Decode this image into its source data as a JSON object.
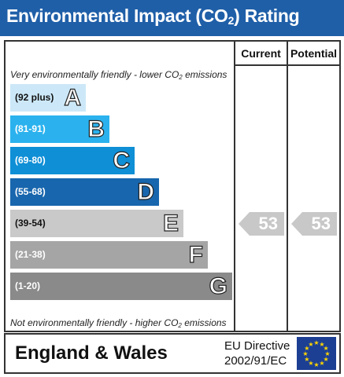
{
  "title": {
    "prefix": "Environmental Impact (CO",
    "sub": "2",
    "suffix": ") Rating"
  },
  "columns": {
    "current": "Current",
    "potential": "Potential"
  },
  "top_note": {
    "prefix": "Very environmentally friendly - lower CO",
    "sub": "2",
    "suffix": " emissions"
  },
  "bottom_note": {
    "prefix": "Not environmentally friendly - higher CO",
    "sub": "2",
    "suffix": " emissions"
  },
  "bands": [
    {
      "range": "(92 plus)",
      "letter": "A",
      "color": "#cce8f8"
    },
    {
      "range": "(81-91)",
      "letter": "B",
      "color": "#2bb2ee"
    },
    {
      "range": "(69-80)",
      "letter": "C",
      "color": "#0f8fd6"
    },
    {
      "range": "(55-68)",
      "letter": "D",
      "color": "#1866ad"
    },
    {
      "range": "(39-54)",
      "letter": "E",
      "color": "#c9c9c9"
    },
    {
      "range": "(21-38)",
      "letter": "F",
      "color": "#a5a5a5"
    },
    {
      "range": "(1-20)",
      "letter": "G",
      "color": "#8a8a8a"
    }
  ],
  "current": {
    "value": "53",
    "band": "E"
  },
  "potential": {
    "value": "53",
    "band": "E"
  },
  "footer": {
    "country": "England & Wales",
    "directive_line1": "EU Directive",
    "directive_line2": "2002/91/EC"
  },
  "colors": {
    "title_bg": "#1f5fa8",
    "arrow": "#c8c8c8",
    "flag_bg": "#1c3f94",
    "flag_stars": "#ffd500"
  },
  "icons": {
    "flag": "eu-flag-icon"
  }
}
